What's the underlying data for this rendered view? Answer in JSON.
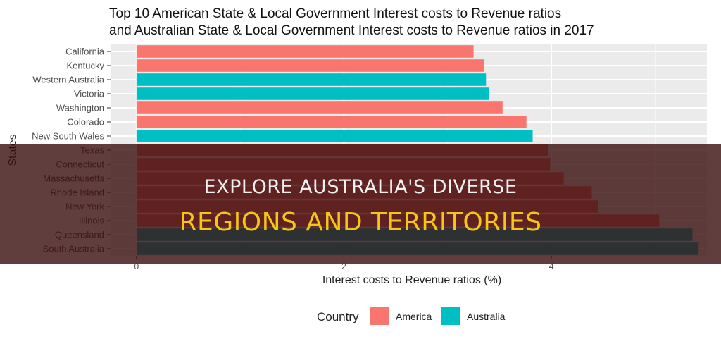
{
  "chart_data": {
    "type": "bar",
    "orientation": "horizontal",
    "title_line1": "Top 10 American State & Local Government Interest costs to Revenue ratios",
    "title_line2": "and Australian State & Local Government Interest costs to Revenue ratios in 2017",
    "xlabel": "Interest costs to Revenue ratios (%)",
    "ylabel": "States",
    "xlim": [
      -0.25,
      5.5
    ],
    "x_ticks": [
      0,
      2,
      4
    ],
    "grid": true,
    "legend": {
      "title": "Country",
      "placement": "bottom",
      "entries": [
        {
          "name": "America",
          "color": "#f8766d"
        },
        {
          "name": "Australia",
          "color": "#00bfc4"
        }
      ]
    },
    "categories": [
      "California",
      "Kentucky",
      "Western Australia",
      "Victoria",
      "Washington",
      "Colorado",
      "New South Wales",
      "Texas",
      "Connecticut",
      "Massachusetts",
      "Rhode Island",
      "New York",
      "Illinois",
      "Queensland",
      "South Australia"
    ],
    "values": [
      3.25,
      3.35,
      3.37,
      3.4,
      3.53,
      3.76,
      3.82,
      3.97,
      3.99,
      4.12,
      4.39,
      4.45,
      5.04,
      5.36,
      5.42
    ],
    "country": [
      "America",
      "America",
      "Australia",
      "Australia",
      "America",
      "America",
      "Australia",
      "America",
      "America",
      "America",
      "America",
      "America",
      "America",
      "Australia",
      "Australia"
    ]
  },
  "overlay": {
    "line1": "EXPLORE AUSTRALIA'S DIVERSE",
    "line2": "REGIONS AND TERRITORIES"
  }
}
